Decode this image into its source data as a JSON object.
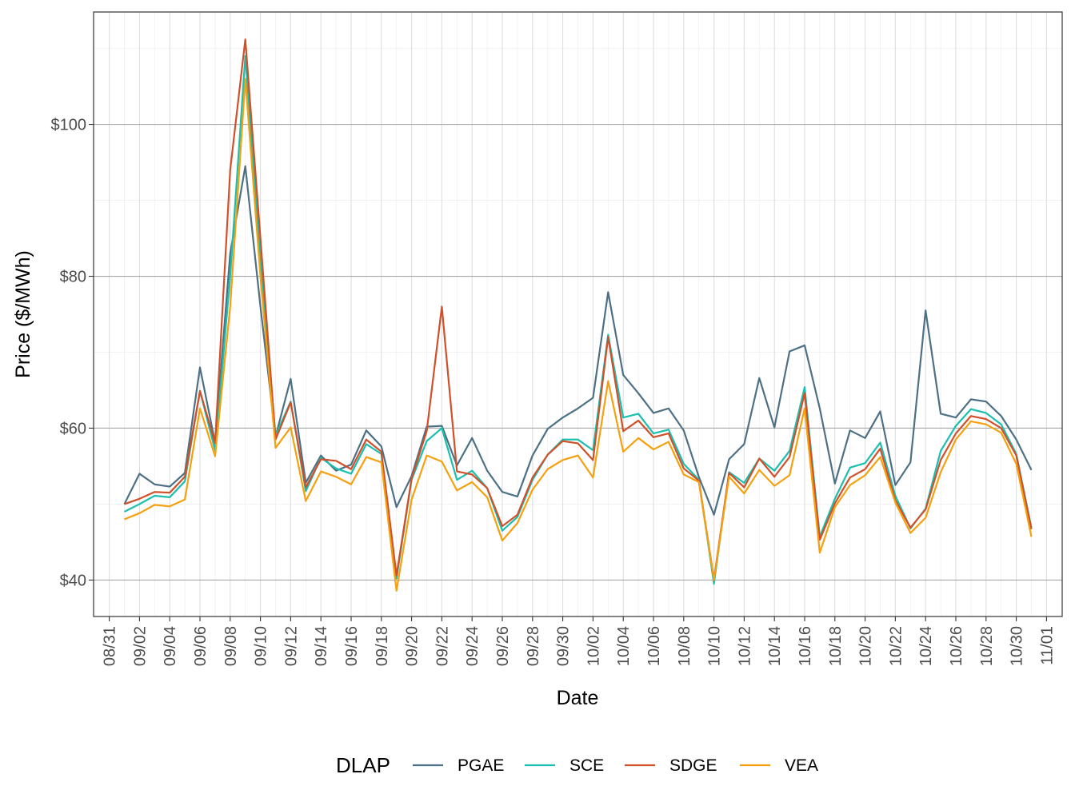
{
  "chart_data": {
    "type": "line",
    "xlabel": "Date",
    "ylabel": "Price ($/MWh)",
    "x_ticks": [
      "08/31",
      "09/02",
      "09/04",
      "09/06",
      "09/08",
      "09/10",
      "09/12",
      "09/14",
      "09/16",
      "09/18",
      "09/20",
      "09/22",
      "09/24",
      "09/26",
      "09/28",
      "09/30",
      "10/02",
      "10/04",
      "10/06",
      "10/08",
      "10/10",
      "10/12",
      "10/14",
      "10/16",
      "10/18",
      "10/20",
      "10/22",
      "10/24",
      "10/26",
      "10/28",
      "10/30",
      "11/01"
    ],
    "y_ticks": [
      "$40",
      "$60",
      "$80",
      "$100"
    ],
    "y_tick_values": [
      40,
      60,
      80,
      100
    ],
    "ylim": [
      35.2,
      114.8
    ],
    "x_start": "2023-08-31",
    "x_end": "2023-11-01",
    "grid": true,
    "legend": {
      "title": "DLAP",
      "position": "bottom"
    },
    "x": [
      "09/01",
      "09/02",
      "09/03",
      "09/04",
      "09/05",
      "09/06",
      "09/07",
      "09/08",
      "09/09",
      "09/10",
      "09/11",
      "09/12",
      "09/13",
      "09/14",
      "09/15",
      "09/16",
      "09/17",
      "09/18",
      "09/19",
      "09/20",
      "09/21",
      "09/22",
      "09/23",
      "09/24",
      "09/25",
      "09/26",
      "09/27",
      "09/28",
      "09/29",
      "09/30",
      "10/01",
      "10/02",
      "10/03",
      "10/04",
      "10/05",
      "10/06",
      "10/07",
      "10/08",
      "10/09",
      "10/10",
      "10/11",
      "10/12",
      "10/13",
      "10/14",
      "10/15",
      "10/16",
      "10/17",
      "10/18",
      "10/19",
      "10/20",
      "10/21",
      "10/22",
      "10/23",
      "10/24",
      "10/25",
      "10/26",
      "10/27",
      "10/28",
      "10/29",
      "10/30",
      "10/31"
    ],
    "series": [
      {
        "name": "PGAE",
        "color": "#4d7085",
        "values": [
          50.0,
          54.0,
          52.6,
          52.3,
          54.1,
          68.0,
          58.1,
          83.0,
          94.5,
          76.0,
          58.9,
          66.5,
          52.8,
          56.4,
          54.4,
          55.2,
          59.7,
          57.6,
          49.6,
          53.7,
          60.2,
          60.3,
          55.1,
          58.7,
          54.4,
          51.6,
          51.0,
          56.4,
          59.9,
          61.4,
          62.6,
          64.0,
          77.9,
          67.0,
          64.6,
          62.0,
          62.6,
          59.7,
          53.6,
          48.6,
          55.9,
          57.9,
          66.6,
          60.1,
          70.1,
          70.9,
          62.6,
          52.7,
          59.7,
          58.7,
          62.2,
          52.5,
          55.5,
          75.5,
          61.9,
          61.4,
          63.8,
          63.5,
          61.6,
          58.5,
          54.5
        ]
      },
      {
        "name": "SCE",
        "color": "#1abfaf",
        "values": [
          49.0,
          50.0,
          51.1,
          50.9,
          53.0,
          64.9,
          57.1,
          80.0,
          109.0,
          82.0,
          59.0,
          63.5,
          51.7,
          56.1,
          54.7,
          54.0,
          57.9,
          56.6,
          40.2,
          53.2,
          58.3,
          60.0,
          53.2,
          54.4,
          52.1,
          46.5,
          48.3,
          53.2,
          56.5,
          58.5,
          58.5,
          57.1,
          72.3,
          61.4,
          61.9,
          59.3,
          59.8,
          55.3,
          53.2,
          39.5,
          54.2,
          52.8,
          56.0,
          54.4,
          57.0,
          65.4,
          45.7,
          50.7,
          54.8,
          55.4,
          58.1,
          51.1,
          46.8,
          49.4,
          57.0,
          60.3,
          62.5,
          62.0,
          60.5,
          56.6,
          46.9
        ]
      },
      {
        "name": "SDGE",
        "color": "#d1502a",
        "values": [
          50.0,
          50.7,
          51.6,
          51.5,
          53.6,
          64.9,
          58.0,
          94.0,
          111.2,
          85.0,
          58.5,
          63.4,
          52.2,
          55.9,
          55.7,
          54.6,
          58.5,
          56.9,
          40.6,
          53.4,
          59.6,
          76.0,
          54.3,
          53.9,
          52.1,
          47.1,
          48.6,
          53.5,
          56.5,
          58.3,
          58.0,
          55.8,
          72.0,
          59.6,
          61.0,
          58.8,
          59.3,
          54.7,
          53.1,
          40.1,
          54.1,
          52.2,
          56.0,
          53.6,
          56.2,
          64.6,
          45.3,
          50.1,
          53.5,
          54.6,
          57.3,
          50.5,
          46.9,
          49.3,
          55.8,
          59.3,
          61.6,
          61.2,
          60.0,
          56.4,
          46.7
        ]
      },
      {
        "name": "VEA",
        "color": "#f5a00e",
        "values": [
          48.0,
          48.8,
          49.9,
          49.7,
          50.6,
          62.6,
          56.3,
          76.0,
          106.0,
          80.0,
          57.4,
          60.1,
          50.4,
          54.3,
          53.6,
          52.6,
          56.2,
          55.5,
          38.6,
          50.6,
          56.4,
          55.6,
          51.8,
          52.9,
          50.9,
          45.2,
          47.5,
          51.9,
          54.6,
          55.8,
          56.4,
          53.5,
          66.2,
          56.9,
          58.7,
          57.2,
          58.2,
          53.9,
          52.9,
          40.0,
          53.6,
          51.4,
          54.5,
          52.4,
          53.8,
          62.6,
          43.6,
          49.6,
          52.5,
          53.8,
          56.2,
          50.2,
          46.2,
          48.2,
          54.2,
          58.5,
          60.9,
          60.5,
          59.4,
          55.3,
          45.7
        ]
      }
    ]
  }
}
